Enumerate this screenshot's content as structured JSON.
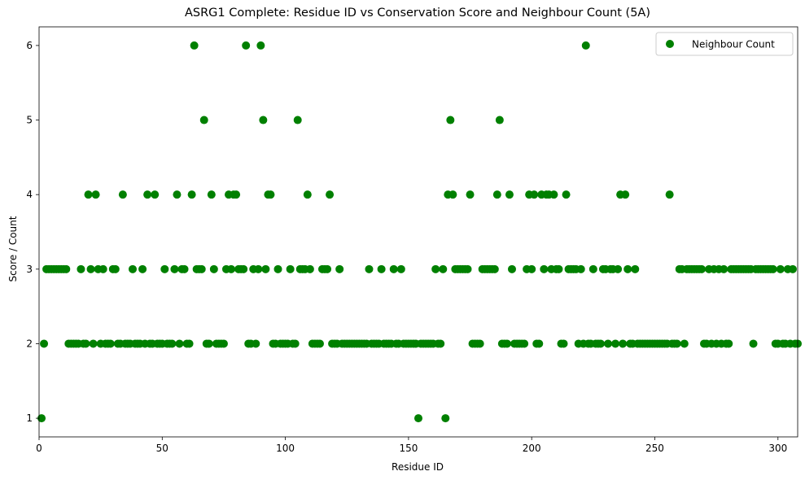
{
  "chart_data": {
    "type": "scatter",
    "title": "ASRG1 Complete: Residue ID vs Conservation Score and Neighbour Count (5A)",
    "xlabel": "Residue ID",
    "ylabel": "Score / Count",
    "xlim": [
      0,
      308
    ],
    "ylim": [
      0.75,
      6.25
    ],
    "xticks": [
      0,
      50,
      100,
      150,
      200,
      250,
      300
    ],
    "yticks": [
      1,
      2,
      3,
      4,
      5,
      6
    ],
    "grid": false,
    "legend_position": "top-right",
    "marker_color": "#008000",
    "series": [
      {
        "name": "Neighbour Count",
        "points": [
          [
            1,
            1
          ],
          [
            2,
            2
          ],
          [
            3,
            3
          ],
          [
            4,
            3
          ],
          [
            5,
            3
          ],
          [
            6,
            3
          ],
          [
            7,
            3
          ],
          [
            8,
            3
          ],
          [
            9,
            3
          ],
          [
            10,
            3
          ],
          [
            11,
            3
          ],
          [
            12,
            2
          ],
          [
            13,
            2
          ],
          [
            14,
            2
          ],
          [
            15,
            2
          ],
          [
            16,
            2
          ],
          [
            17,
            3
          ],
          [
            18,
            2
          ],
          [
            19,
            2
          ],
          [
            20,
            4
          ],
          [
            21,
            3
          ],
          [
            22,
            2
          ],
          [
            23,
            4
          ],
          [
            24,
            3
          ],
          [
            25,
            2
          ],
          [
            26,
            3
          ],
          [
            27,
            2
          ],
          [
            28,
            2
          ],
          [
            29,
            2
          ],
          [
            30,
            3
          ],
          [
            31,
            3
          ],
          [
            32,
            2
          ],
          [
            33,
            2
          ],
          [
            34,
            4
          ],
          [
            35,
            2
          ],
          [
            36,
            2
          ],
          [
            37,
            2
          ],
          [
            38,
            3
          ],
          [
            39,
            2
          ],
          [
            40,
            2
          ],
          [
            41,
            2
          ],
          [
            42,
            3
          ],
          [
            43,
            2
          ],
          [
            44,
            4
          ],
          [
            45,
            2
          ],
          [
            46,
            2
          ],
          [
            47,
            4
          ],
          [
            48,
            2
          ],
          [
            49,
            2
          ],
          [
            50,
            2
          ],
          [
            51,
            3
          ],
          [
            52,
            2
          ],
          [
            53,
            2
          ],
          [
            54,
            2
          ],
          [
            55,
            3
          ],
          [
            56,
            4
          ],
          [
            57,
            2
          ],
          [
            58,
            3
          ],
          [
            59,
            3
          ],
          [
            60,
            2
          ],
          [
            61,
            2
          ],
          [
            62,
            4
          ],
          [
            63,
            6
          ],
          [
            64,
            3
          ],
          [
            65,
            3
          ],
          [
            66,
            3
          ],
          [
            67,
            5
          ],
          [
            68,
            2
          ],
          [
            69,
            2
          ],
          [
            70,
            4
          ],
          [
            71,
            3
          ],
          [
            72,
            2
          ],
          [
            73,
            2
          ],
          [
            74,
            2
          ],
          [
            75,
            2
          ],
          [
            76,
            3
          ],
          [
            77,
            4
          ],
          [
            78,
            3
          ],
          [
            79,
            4
          ],
          [
            80,
            4
          ],
          [
            81,
            3
          ],
          [
            82,
            3
          ],
          [
            83,
            3
          ],
          [
            84,
            6
          ],
          [
            85,
            2
          ],
          [
            86,
            2
          ],
          [
            87,
            3
          ],
          [
            88,
            2
          ],
          [
            89,
            3
          ],
          [
            90,
            6
          ],
          [
            91,
            5
          ],
          [
            92,
            3
          ],
          [
            93,
            4
          ],
          [
            94,
            4
          ],
          [
            95,
            2
          ],
          [
            96,
            2
          ],
          [
            97,
            3
          ],
          [
            98,
            2
          ],
          [
            99,
            2
          ],
          [
            100,
            2
          ],
          [
            101,
            2
          ],
          [
            102,
            3
          ],
          [
            103,
            2
          ],
          [
            104,
            2
          ],
          [
            105,
            5
          ],
          [
            106,
            3
          ],
          [
            107,
            3
          ],
          [
            108,
            3
          ],
          [
            109,
            4
          ],
          [
            110,
            3
          ],
          [
            111,
            2
          ],
          [
            112,
            2
          ],
          [
            113,
            2
          ],
          [
            114,
            2
          ],
          [
            115,
            3
          ],
          [
            116,
            3
          ],
          [
            117,
            3
          ],
          [
            118,
            4
          ],
          [
            119,
            2
          ],
          [
            120,
            2
          ],
          [
            121,
            2
          ],
          [
            122,
            3
          ],
          [
            123,
            2
          ],
          [
            124,
            2
          ],
          [
            125,
            2
          ],
          [
            126,
            2
          ],
          [
            127,
            2
          ],
          [
            128,
            2
          ],
          [
            129,
            2
          ],
          [
            130,
            2
          ],
          [
            131,
            2
          ],
          [
            132,
            2
          ],
          [
            133,
            2
          ],
          [
            134,
            3
          ],
          [
            135,
            2
          ],
          [
            136,
            2
          ],
          [
            137,
            2
          ],
          [
            138,
            2
          ],
          [
            139,
            3
          ],
          [
            140,
            2
          ],
          [
            141,
            2
          ],
          [
            142,
            2
          ],
          [
            143,
            2
          ],
          [
            144,
            3
          ],
          [
            145,
            2
          ],
          [
            146,
            2
          ],
          [
            147,
            3
          ],
          [
            148,
            2
          ],
          [
            149,
            2
          ],
          [
            150,
            2
          ],
          [
            151,
            2
          ],
          [
            152,
            2
          ],
          [
            153,
            2
          ],
          [
            154,
            1
          ],
          [
            155,
            2
          ],
          [
            156,
            2
          ],
          [
            157,
            2
          ],
          [
            158,
            2
          ],
          [
            159,
            2
          ],
          [
            160,
            2
          ],
          [
            161,
            3
          ],
          [
            162,
            2
          ],
          [
            163,
            2
          ],
          [
            164,
            3
          ],
          [
            165,
            1
          ],
          [
            166,
            4
          ],
          [
            167,
            5
          ],
          [
            168,
            4
          ],
          [
            169,
            3
          ],
          [
            170,
            3
          ],
          [
            171,
            3
          ],
          [
            172,
            3
          ],
          [
            173,
            3
          ],
          [
            174,
            3
          ],
          [
            175,
            4
          ],
          [
            176,
            2
          ],
          [
            177,
            2
          ],
          [
            178,
            2
          ],
          [
            179,
            2
          ],
          [
            180,
            3
          ],
          [
            181,
            3
          ],
          [
            182,
            3
          ],
          [
            183,
            3
          ],
          [
            184,
            3
          ],
          [
            185,
            3
          ],
          [
            186,
            4
          ],
          [
            187,
            5
          ],
          [
            188,
            2
          ],
          [
            189,
            2
          ],
          [
            190,
            2
          ],
          [
            191,
            4
          ],
          [
            192,
            3
          ],
          [
            193,
            2
          ],
          [
            194,
            2
          ],
          [
            195,
            2
          ],
          [
            196,
            2
          ],
          [
            197,
            2
          ],
          [
            198,
            3
          ],
          [
            199,
            4
          ],
          [
            200,
            3
          ],
          [
            201,
            4
          ],
          [
            202,
            2
          ],
          [
            203,
            2
          ],
          [
            204,
            4
          ],
          [
            205,
            3
          ],
          [
            206,
            4
          ],
          [
            207,
            4
          ],
          [
            208,
            3
          ],
          [
            209,
            4
          ],
          [
            210,
            3
          ],
          [
            211,
            3
          ],
          [
            212,
            2
          ],
          [
            213,
            2
          ],
          [
            214,
            4
          ],
          [
            215,
            3
          ],
          [
            216,
            3
          ],
          [
            217,
            3
          ],
          [
            218,
            3
          ],
          [
            219,
            2
          ],
          [
            220,
            3
          ],
          [
            221,
            2
          ],
          [
            222,
            6
          ],
          [
            223,
            2
          ],
          [
            224,
            2
          ],
          [
            225,
            3
          ],
          [
            226,
            2
          ],
          [
            227,
            2
          ],
          [
            228,
            2
          ],
          [
            229,
            3
          ],
          [
            230,
            3
          ],
          [
            231,
            2
          ],
          [
            232,
            3
          ],
          [
            233,
            3
          ],
          [
            234,
            2
          ],
          [
            235,
            3
          ],
          [
            236,
            4
          ],
          [
            237,
            2
          ],
          [
            238,
            4
          ],
          [
            239,
            3
          ],
          [
            240,
            2
          ],
          [
            241,
            2
          ],
          [
            242,
            3
          ],
          [
            243,
            2
          ],
          [
            244,
            2
          ],
          [
            245,
            2
          ],
          [
            246,
            2
          ],
          [
            247,
            2
          ],
          [
            248,
            2
          ],
          [
            249,
            2
          ],
          [
            250,
            2
          ],
          [
            251,
            2
          ],
          [
            252,
            2
          ],
          [
            253,
            2
          ],
          [
            254,
            2
          ],
          [
            255,
            2
          ],
          [
            256,
            4
          ],
          [
            257,
            2
          ],
          [
            258,
            2
          ],
          [
            259,
            2
          ],
          [
            260,
            3
          ],
          [
            261,
            3
          ],
          [
            262,
            2
          ],
          [
            263,
            3
          ],
          [
            264,
            3
          ],
          [
            265,
            3
          ],
          [
            266,
            3
          ],
          [
            267,
            3
          ],
          [
            268,
            3
          ],
          [
            269,
            3
          ],
          [
            270,
            2
          ],
          [
            271,
            2
          ],
          [
            272,
            3
          ],
          [
            273,
            2
          ],
          [
            274,
            3
          ],
          [
            275,
            2
          ],
          [
            276,
            3
          ],
          [
            277,
            2
          ],
          [
            278,
            3
          ],
          [
            279,
            2
          ],
          [
            280,
            2
          ],
          [
            281,
            3
          ],
          [
            282,
            3
          ],
          [
            283,
            3
          ],
          [
            284,
            3
          ],
          [
            285,
            3
          ],
          [
            286,
            3
          ],
          [
            287,
            3
          ],
          [
            288,
            3
          ],
          [
            289,
            3
          ],
          [
            290,
            2
          ],
          [
            291,
            3
          ],
          [
            292,
            3
          ],
          [
            293,
            3
          ],
          [
            294,
            3
          ],
          [
            295,
            3
          ],
          [
            296,
            3
          ],
          [
            297,
            3
          ],
          [
            298,
            3
          ],
          [
            299,
            2
          ],
          [
            300,
            2
          ],
          [
            301,
            3
          ],
          [
            302,
            2
          ],
          [
            303,
            2
          ],
          [
            304,
            3
          ],
          [
            305,
            2
          ],
          [
            306,
            3
          ],
          [
            307,
            2
          ],
          [
            308,
            2
          ]
        ]
      }
    ]
  }
}
